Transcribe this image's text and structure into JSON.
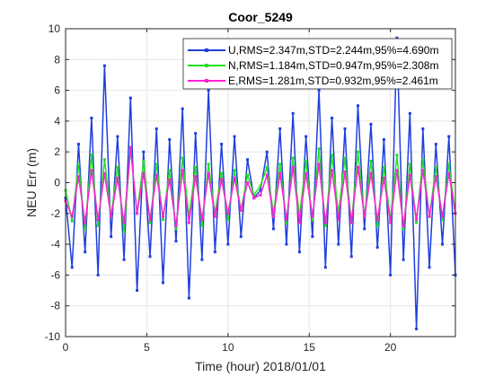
{
  "chart_data": {
    "type": "line",
    "title": "Coor_5249",
    "xlabel": "Time (hour)  2018/01/01",
    "ylabel": "NEU Err (m)",
    "xlim": [
      0,
      24
    ],
    "ylim": [
      -10,
      10
    ],
    "x_ticks": [
      0,
      5,
      10,
      15,
      20
    ],
    "y_ticks": [
      -10,
      -8,
      -6,
      -4,
      -2,
      0,
      2,
      4,
      6,
      8,
      10
    ],
    "grid": true,
    "legend_position": "top-right",
    "series": [
      {
        "name": "U,RMS=2.347m,STD=2.244m,95%=4.690m",
        "color": "#1f3fdd",
        "x": [
          0,
          0.4,
          0.8,
          1.2,
          1.6,
          2.0,
          2.4,
          2.8,
          3.2,
          3.6,
          4.0,
          4.4,
          4.8,
          5.2,
          5.6,
          6.0,
          6.4,
          6.8,
          7.2,
          7.6,
          8.0,
          8.4,
          8.8,
          9.2,
          9.6,
          10.0,
          10.4,
          10.8,
          11.2,
          11.6,
          12.0,
          12.4,
          12.8,
          13.2,
          13.6,
          14.0,
          14.4,
          14.8,
          15.2,
          15.6,
          16.0,
          16.4,
          16.8,
          17.2,
          17.6,
          18.0,
          18.4,
          18.8,
          19.2,
          19.6,
          20.0,
          20.4,
          20.8,
          21.2,
          21.6,
          22.0,
          22.4,
          22.8,
          23.2,
          23.6,
          24.0
        ],
        "values": [
          -1.0,
          -5.5,
          2.5,
          -4.5,
          4.2,
          -6.0,
          7.6,
          -3.5,
          3.0,
          -5.0,
          5.5,
          -7.0,
          2.0,
          -4.8,
          3.5,
          -6.5,
          2.8,
          -3.8,
          4.8,
          -7.5,
          3.2,
          -5.0,
          6.0,
          -4.5,
          2.5,
          -4.0,
          3.0,
          -3.5,
          1.5,
          -1.0,
          -0.5,
          2.0,
          -3.0,
          3.5,
          -4.0,
          4.5,
          -4.5,
          3.0,
          -3.5,
          6.0,
          -5.5,
          4.2,
          -4.0,
          3.5,
          -4.8,
          5.0,
          -3.0,
          3.8,
          -4.2,
          2.8,
          -6.0,
          9.4,
          -5.0,
          4.5,
          -9.5,
          3.5,
          -5.5,
          2.5,
          -4.0,
          3.0,
          -6.0
        ]
      },
      {
        "name": "N,RMS=1.184m,STD=0.947m,95%=2.308m",
        "color": "#22e022",
        "x": [
          0,
          0.4,
          0.8,
          1.2,
          1.6,
          2.0,
          2.4,
          2.8,
          3.2,
          3.6,
          4.0,
          4.4,
          4.8,
          5.2,
          5.6,
          6.0,
          6.4,
          6.8,
          7.2,
          7.6,
          8.0,
          8.4,
          8.8,
          9.2,
          9.6,
          10.0,
          10.4,
          10.8,
          11.2,
          11.6,
          12.0,
          12.4,
          12.8,
          13.2,
          13.6,
          14.0,
          14.4,
          14.8,
          15.2,
          15.6,
          16.0,
          16.4,
          16.8,
          17.2,
          17.6,
          18.0,
          18.4,
          18.8,
          19.2,
          19.6,
          20.0,
          20.4,
          20.8,
          21.2,
          21.6,
          22.0,
          22.4,
          22.8,
          23.2,
          23.6,
          24.0
        ],
        "values": [
          -0.5,
          -2.5,
          1.2,
          -3.0,
          1.8,
          -2.8,
          1.5,
          -2.2,
          1.0,
          -3.2,
          2.2,
          -2.0,
          1.4,
          -2.6,
          1.2,
          -2.4,
          0.8,
          -3.0,
          1.6,
          -2.2,
          1.0,
          -2.8,
          1.2,
          -2.0,
          0.6,
          -2.4,
          0.8,
          -1.8,
          0.5,
          -0.8,
          -0.2,
          1.0,
          -2.0,
          1.2,
          -2.6,
          1.6,
          -2.2,
          1.4,
          -2.4,
          2.2,
          -2.8,
          1.8,
          -2.0,
          1.6,
          -2.6,
          2.0,
          -2.2,
          1.4,
          -2.8,
          1.0,
          -2.4,
          1.8,
          -3.0,
          1.2,
          -2.6,
          1.5,
          -2.2,
          1.0,
          -2.4,
          1.2,
          -2.0
        ]
      },
      {
        "name": "E,RMS=1.281m,STD=0.932m,95%=2.461m",
        "color": "#ff22d4",
        "x": [
          0,
          0.4,
          0.8,
          1.2,
          1.6,
          2.0,
          2.4,
          2.8,
          3.2,
          3.6,
          4.0,
          4.4,
          4.8,
          5.2,
          5.6,
          6.0,
          6.4,
          6.8,
          7.2,
          7.6,
          8.0,
          8.4,
          8.8,
          9.2,
          9.6,
          10.0,
          10.4,
          10.8,
          11.2,
          11.6,
          12.0,
          12.4,
          12.8,
          13.2,
          13.6,
          14.0,
          14.4,
          14.8,
          15.2,
          15.6,
          16.0,
          16.4,
          16.8,
          17.2,
          17.6,
          18.0,
          18.4,
          18.8,
          19.2,
          19.6,
          20.0,
          20.4,
          20.8,
          21.2,
          21.6,
          22.0,
          22.4,
          22.8,
          23.2,
          23.6,
          24.0
        ],
        "values": [
          -1.2,
          -2.2,
          0.4,
          -2.6,
          0.8,
          -2.4,
          0.6,
          -2.2,
          0.3,
          -2.6,
          2.3,
          -2.0,
          0.6,
          -2.4,
          0.5,
          -2.2,
          0.2,
          -2.8,
          0.8,
          -2.6,
          0.4,
          -2.4,
          0.6,
          -2.2,
          0.2,
          -2.0,
          0.3,
          -1.8,
          0.0,
          -1.0,
          -0.8,
          0.5,
          -2.2,
          0.6,
          -2.4,
          1.0,
          -2.6,
          0.6,
          -2.2,
          1.2,
          -2.6,
          0.8,
          -2.4,
          0.7,
          -2.6,
          1.0,
          -2.2,
          0.6,
          -2.4,
          0.3,
          -2.6,
          0.8,
          -2.8,
          0.5,
          -2.4,
          0.8,
          -2.2,
          0.4,
          -2.2,
          0.6,
          -2.0
        ]
      }
    ]
  }
}
